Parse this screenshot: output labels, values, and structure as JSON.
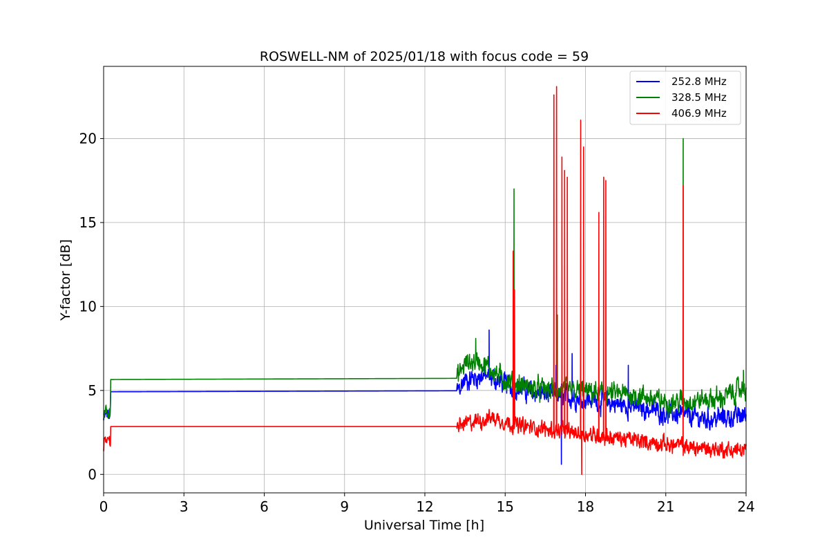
{
  "chart_data": {
    "type": "line",
    "title": "ROSWELL-NM of 2025/01/18 with focus code = 59",
    "xlabel": "Universal Time [h]",
    "ylabel": "Y-factor [dB]",
    "xlim": [
      0,
      24
    ],
    "ylim": [
      -1.1,
      24.3
    ],
    "xticks": [
      0,
      3,
      6,
      9,
      12,
      15,
      18,
      21,
      24
    ],
    "yticks": [
      0,
      5,
      10,
      15,
      20
    ],
    "grid": true,
    "legend_position": "top-right",
    "series": [
      {
        "name": "252.8 MHz",
        "color": "#0000ff",
        "noise": 0.9,
        "base": [
          [
            0,
            3.2
          ],
          [
            0.1,
            3.6
          ],
          [
            0.25,
            3.4
          ],
          [
            0.26,
            4.92
          ],
          [
            13.2,
            4.98
          ],
          [
            13.5,
            5.6
          ],
          [
            14.2,
            5.9
          ],
          [
            15.0,
            5.4
          ],
          [
            16.0,
            4.9
          ],
          [
            18.0,
            4.5
          ],
          [
            19.5,
            4.1
          ],
          [
            21.0,
            3.7
          ],
          [
            22.5,
            3.3
          ],
          [
            24.0,
            3.5
          ]
        ],
        "spikes": [
          [
            14.4,
            8.6
          ],
          [
            15.3,
            7.2
          ],
          [
            16.9,
            6.5
          ],
          [
            17.1,
            0.6
          ],
          [
            17.5,
            7.2
          ],
          [
            19.6,
            6.5
          ]
        ]
      },
      {
        "name": "328.5 MHz",
        "color": "#008000",
        "noise": 0.9,
        "base": [
          [
            0,
            3.6
          ],
          [
            0.1,
            4.1
          ],
          [
            0.25,
            3.5
          ],
          [
            0.26,
            5.65
          ],
          [
            13.2,
            5.72
          ],
          [
            13.5,
            6.6
          ],
          [
            14.0,
            6.8
          ],
          [
            15.0,
            5.6
          ],
          [
            16.0,
            5.1
          ],
          [
            18.0,
            4.9
          ],
          [
            20.0,
            4.7
          ],
          [
            21.0,
            4.3
          ],
          [
            23.0,
            4.5
          ],
          [
            24.0,
            5.2
          ]
        ],
        "spikes": [
          [
            13.9,
            8.1
          ],
          [
            15.33,
            17.0
          ],
          [
            16.95,
            9.5
          ],
          [
            21.65,
            20.0
          ],
          [
            23.9,
            6.2
          ]
        ]
      },
      {
        "name": "406.9 MHz",
        "color": "#ff0000",
        "noise": 0.7,
        "base": [
          [
            0,
            1.6
          ],
          [
            0.1,
            2.2
          ],
          [
            0.25,
            1.7
          ],
          [
            0.26,
            2.85
          ],
          [
            13.2,
            2.85
          ],
          [
            13.5,
            3.0
          ],
          [
            14.5,
            3.4
          ],
          [
            15.5,
            2.9
          ],
          [
            17.0,
            2.6
          ],
          [
            18.0,
            2.4
          ],
          [
            20.0,
            2.0
          ],
          [
            22.0,
            1.6
          ],
          [
            24.0,
            1.4
          ]
        ],
        "spikes": [
          [
            15.3,
            13.3
          ],
          [
            15.35,
            11.0
          ],
          [
            16.82,
            22.6
          ],
          [
            16.92,
            23.1
          ],
          [
            17.12,
            18.9
          ],
          [
            17.22,
            18.1
          ],
          [
            17.32,
            17.7
          ],
          [
            17.82,
            21.1
          ],
          [
            17.86,
            0.0
          ],
          [
            17.93,
            19.5
          ],
          [
            18.5,
            15.6
          ],
          [
            18.68,
            17.7
          ],
          [
            18.76,
            17.5
          ],
          [
            21.65,
            17.2
          ]
        ]
      }
    ]
  }
}
